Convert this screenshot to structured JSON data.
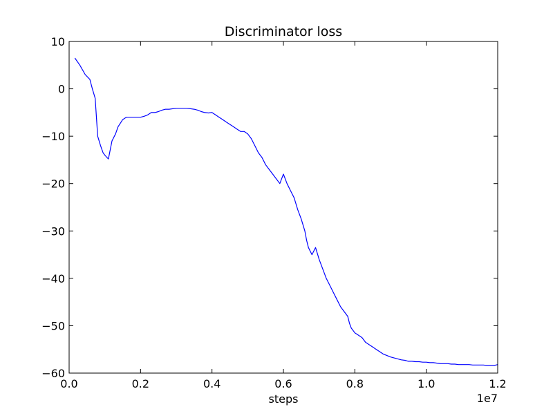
{
  "chart_data": {
    "type": "line",
    "title": "Discriminator loss",
    "xlabel": "steps",
    "ylabel": "",
    "x_offset_label": "1e7",
    "xlim": [
      0,
      1.2
    ],
    "ylim": [
      -60,
      10
    ],
    "x_ticks": [
      "0.0",
      "0.2",
      "0.4",
      "0.6",
      "0.8",
      "1.0",
      "1.2"
    ],
    "y_ticks": [
      "10",
      "0",
      "−10",
      "−20",
      "−30",
      "−40",
      "−50",
      "−60"
    ],
    "x_tick_values": [
      0.0,
      0.2,
      0.4,
      0.6,
      0.8,
      1.0,
      1.2
    ],
    "y_tick_values": [
      10,
      0,
      -10,
      -20,
      -30,
      -40,
      -50,
      -60
    ],
    "grid": false,
    "legend": "none",
    "line_color": "#0000ff",
    "series": [
      {
        "x": [
          0.016,
          0.03,
          0.045,
          0.058,
          0.065,
          0.073,
          0.08,
          0.088,
          0.095,
          0.1,
          0.11,
          0.12,
          0.13,
          0.137,
          0.15,
          0.16,
          0.17,
          0.18,
          0.19,
          0.2,
          0.21,
          0.22,
          0.23,
          0.24,
          0.25,
          0.26,
          0.27,
          0.28,
          0.29,
          0.3,
          0.31,
          0.32,
          0.33,
          0.34,
          0.35,
          0.36,
          0.37,
          0.38,
          0.39,
          0.4,
          0.41,
          0.42,
          0.43,
          0.44,
          0.45,
          0.46,
          0.47,
          0.48,
          0.49,
          0.5,
          0.51,
          0.52,
          0.53,
          0.54,
          0.55,
          0.56,
          0.57,
          0.58,
          0.59,
          0.6,
          0.61,
          0.62,
          0.63,
          0.64,
          0.65,
          0.66,
          0.665,
          0.67,
          0.68,
          0.69,
          0.7,
          0.71,
          0.72,
          0.73,
          0.74,
          0.75,
          0.76,
          0.77,
          0.78,
          0.785,
          0.79,
          0.8,
          0.81,
          0.82,
          0.83,
          0.84,
          0.85,
          0.86,
          0.87,
          0.88,
          0.89,
          0.9,
          0.91,
          0.92,
          0.93,
          0.94,
          0.95,
          0.96,
          0.97,
          0.98,
          0.99,
          1.0,
          1.01,
          1.02,
          1.03,
          1.04,
          1.05,
          1.06,
          1.07,
          1.08,
          1.09,
          1.1,
          1.11,
          1.12,
          1.13,
          1.14,
          1.15,
          1.16,
          1.17,
          1.18,
          1.19,
          1.2
        ],
        "values": [
          6.5,
          5.0,
          3.0,
          2.0,
          0.0,
          -2.0,
          -10.0,
          -12.0,
          -13.5,
          -14.0,
          -14.8,
          -11.0,
          -9.5,
          -8.0,
          -6.5,
          -6.0,
          -6.0,
          -6.0,
          -6.0,
          -6.0,
          -5.8,
          -5.5,
          -5.0,
          -5.0,
          -4.8,
          -4.5,
          -4.3,
          -4.3,
          -4.2,
          -4.1,
          -4.1,
          -4.1,
          -4.1,
          -4.2,
          -4.3,
          -4.5,
          -4.8,
          -5.0,
          -5.1,
          -5.0,
          -5.5,
          -6.0,
          -6.5,
          -7.0,
          -7.5,
          -8.0,
          -8.5,
          -9.0,
          -9.0,
          -9.5,
          -10.5,
          -12.0,
          -13.5,
          -14.5,
          -16.0,
          -17.0,
          -18.0,
          -19.0,
          -20.0,
          -18.0,
          -20.0,
          -21.5,
          -23.0,
          -25.5,
          -27.5,
          -30.0,
          -32.0,
          -33.5,
          -35.0,
          -33.5,
          -36.0,
          -38.0,
          -40.0,
          -41.5,
          -43.0,
          -44.5,
          -46.0,
          -47.0,
          -48.0,
          -49.5,
          -50.5,
          -51.5,
          -52.0,
          -52.5,
          -53.5,
          -54.0,
          -54.5,
          -55.0,
          -55.5,
          -56.0,
          -56.3,
          -56.6,
          -56.8,
          -57.0,
          -57.2,
          -57.3,
          -57.5,
          -57.5,
          -57.6,
          -57.6,
          -57.7,
          -57.7,
          -57.8,
          -57.8,
          -57.9,
          -58.0,
          -58.0,
          -58.0,
          -58.1,
          -58.1,
          -58.2,
          -58.2,
          -58.2,
          -58.2,
          -58.3,
          -58.3,
          -58.3,
          -58.3,
          -58.4,
          -58.4,
          -58.4,
          -58.2
        ]
      }
    ]
  }
}
